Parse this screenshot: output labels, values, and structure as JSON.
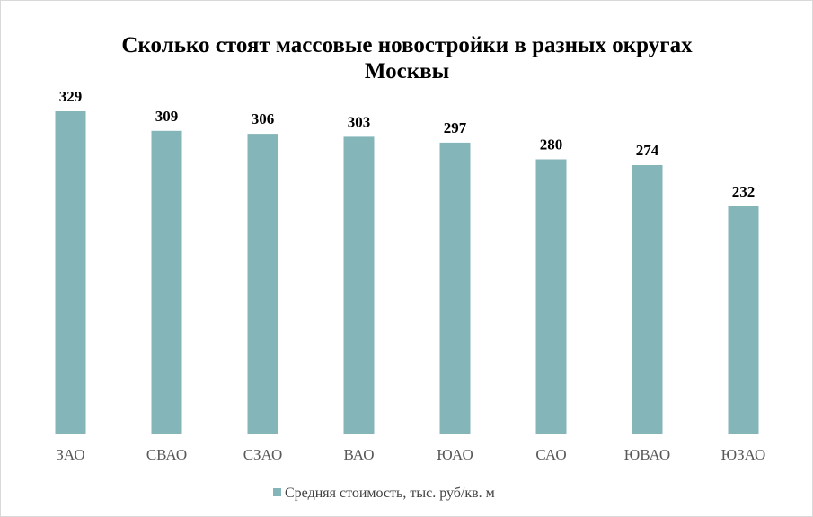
{
  "chart_data": {
    "type": "bar",
    "title": "Сколько стоят массовые новостройки  в разных округах Москвы",
    "title_lines": [
      "Сколько стоят массовые новостройки  в разных округах",
      "Москвы"
    ],
    "categories": [
      "ЗАО",
      "СВАО",
      "СЗАО",
      "ВАО",
      "ЮАО",
      "САО",
      "ЮВАО",
      "ЮЗАО"
    ],
    "series": [
      {
        "name": "Средняя стоимость, тыс. руб/кв. м",
        "values": [
          329,
          309,
          306,
          303,
          297,
          280,
          274,
          232
        ],
        "color": "#84b5b8"
      }
    ],
    "data_labels": [
      "329",
      "309",
      "306",
      "303",
      "297",
      "280",
      "274",
      "232"
    ],
    "ylim": [
      0,
      329
    ],
    "grid": false,
    "legend_position": "bottom",
    "xlabel": "",
    "ylabel": ""
  }
}
